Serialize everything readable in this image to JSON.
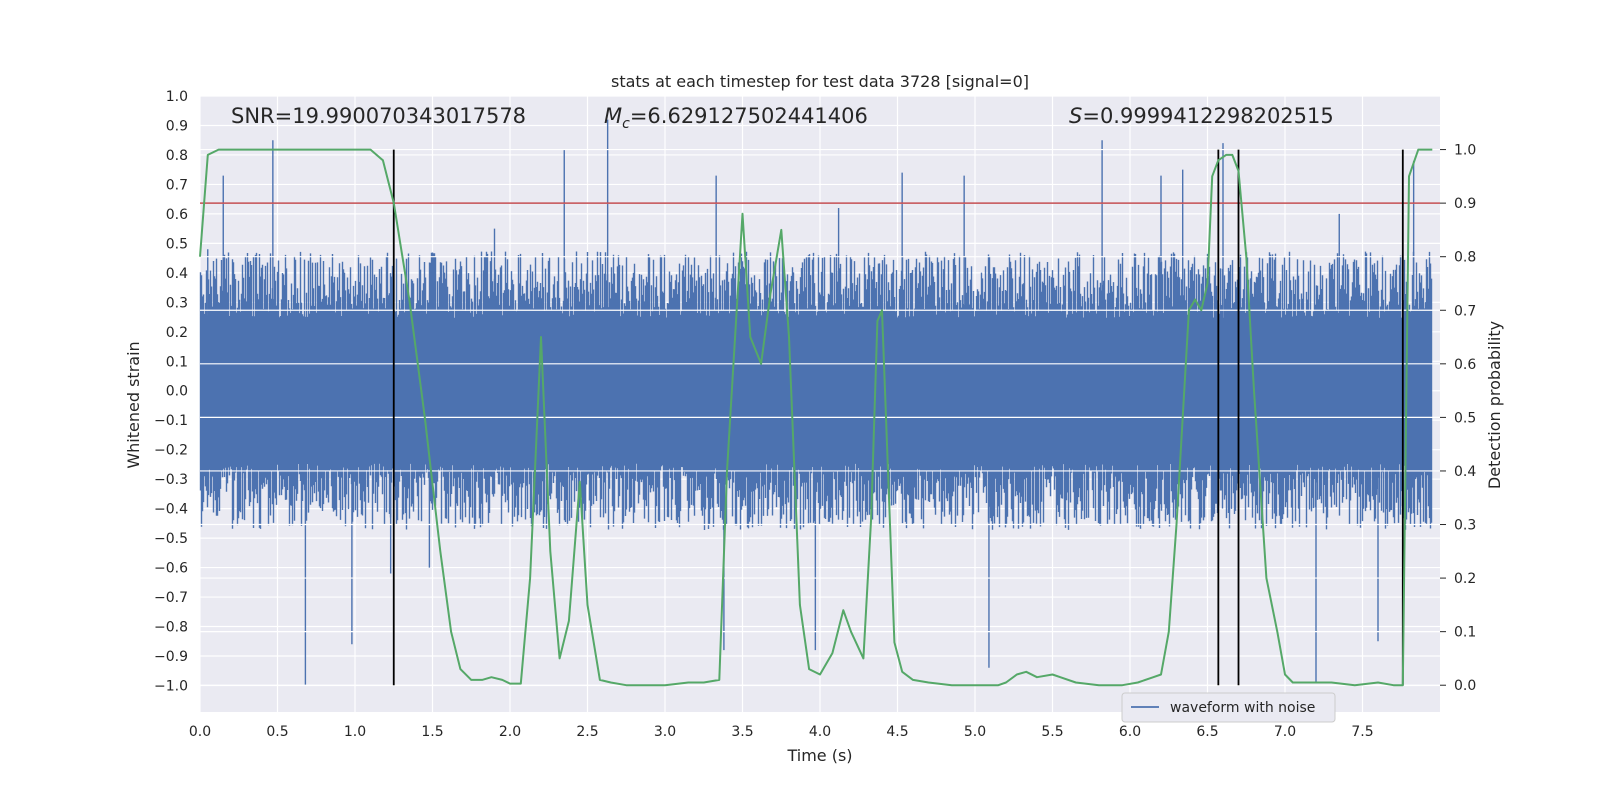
{
  "chart_data": {
    "type": "line",
    "title": "stats at each timestep for test data 3728 [signal=0]",
    "xlabel": "Time (s)",
    "ylabel": "Whitened strain",
    "y2label": "Detection probability",
    "xlim": [
      0.0,
      8.0
    ],
    "ylim": [
      -1.09,
      1.0
    ],
    "y2lim": [
      -0.05,
      1.1
    ],
    "xticks": [
      "0.0",
      "0.5",
      "1.0",
      "1.5",
      "2.0",
      "2.5",
      "3.0",
      "3.5",
      "4.0",
      "4.5",
      "5.0",
      "5.5",
      "6.0",
      "6.5",
      "7.0",
      "7.5"
    ],
    "yticks": [
      "1.0",
      "0.9",
      "0.8",
      "0.7",
      "0.6",
      "0.5",
      "0.4",
      "0.3",
      "0.2",
      "0.1",
      "0.0",
      "−0.1",
      "−0.2",
      "−0.3",
      "−0.4",
      "−0.5",
      "−0.6",
      "−0.7",
      "−0.8",
      "−0.9",
      "−1.0"
    ],
    "y2ticks": [
      "1.0",
      "0.9",
      "0.8",
      "0.7",
      "0.6",
      "0.5",
      "0.4",
      "0.3",
      "0.2",
      "0.1",
      "0.0"
    ],
    "grid": true,
    "legend": {
      "position": "lower-right",
      "entries": [
        "waveform with noise"
      ]
    },
    "annotations": {
      "snr": "SNR=19.990070343017578",
      "mc_symbol": "M",
      "mc_sub": "c",
      "mc_value": "=6.629127502441406",
      "s_symbol": "S",
      "s_value": "=0.9999412298202515"
    },
    "threshold_y2": 0.9,
    "event_lines_x": [
      1.25,
      6.57,
      6.7,
      7.76
    ],
    "strain_envelope": {
      "upper_typical": 0.45,
      "lower_typical": -0.45,
      "spikes": [
        [
          0.05,
          0.48
        ],
        [
          0.15,
          0.73
        ],
        [
          0.47,
          0.85
        ],
        [
          0.68,
          -1.0
        ],
        [
          0.98,
          -0.86
        ],
        [
          1.23,
          -0.62
        ],
        [
          1.48,
          -0.6
        ],
        [
          2.35,
          0.82
        ],
        [
          2.63,
          0.92
        ],
        [
          3.33,
          0.73
        ],
        [
          3.38,
          -0.88
        ],
        [
          3.97,
          -0.88
        ],
        [
          4.12,
          0.62
        ],
        [
          4.53,
          0.74
        ],
        [
          5.09,
          -0.94
        ],
        [
          5.82,
          0.85
        ],
        [
          6.2,
          0.73
        ],
        [
          6.34,
          0.75
        ],
        [
          7.2,
          -0.99
        ],
        [
          7.6,
          -0.85
        ],
        [
          7.83,
          0.78
        ],
        [
          7.35,
          0.6
        ],
        [
          1.9,
          0.55
        ],
        [
          4.93,
          0.73
        ],
        [
          6.6,
          0.84
        ]
      ]
    },
    "detection_probability": {
      "x": [
        0.0,
        0.05,
        0.12,
        0.2,
        0.4,
        0.6,
        0.8,
        1.0,
        1.1,
        1.18,
        1.25,
        1.35,
        1.45,
        1.55,
        1.62,
        1.68,
        1.75,
        1.82,
        1.88,
        1.95,
        2.0,
        2.07,
        2.13,
        2.2,
        2.26,
        2.32,
        2.38,
        2.45,
        2.5,
        2.58,
        2.65,
        2.75,
        2.85,
        3.0,
        3.15,
        3.25,
        3.35,
        3.4,
        3.5,
        3.55,
        3.62,
        3.68,
        3.75,
        3.8,
        3.87,
        3.93,
        4.0,
        4.08,
        4.15,
        4.2,
        4.28,
        4.33,
        4.37,
        4.4,
        4.48,
        4.53,
        4.6,
        4.7,
        4.85,
        5.0,
        5.15,
        5.2,
        5.27,
        5.33,
        5.4,
        5.5,
        5.55,
        5.65,
        5.8,
        5.95,
        6.05,
        6.15,
        6.2,
        6.25,
        6.3,
        6.38,
        6.42,
        6.46,
        6.5,
        6.53,
        6.57,
        6.62,
        6.66,
        6.7,
        6.75,
        6.8,
        6.88,
        6.95,
        7.0,
        7.05,
        7.15,
        7.3,
        7.45,
        7.6,
        7.7,
        7.76,
        7.8,
        7.86,
        7.9,
        7.95
      ],
      "y": [
        0.8,
        0.99,
        1.0,
        1.0,
        1.0,
        1.0,
        1.0,
        1.0,
        1.0,
        0.98,
        0.9,
        0.72,
        0.5,
        0.25,
        0.1,
        0.03,
        0.01,
        0.01,
        0.015,
        0.01,
        0.003,
        0.003,
        0.2,
        0.65,
        0.25,
        0.05,
        0.12,
        0.38,
        0.15,
        0.01,
        0.005,
        0.0,
        0.0,
        0.0,
        0.005,
        0.005,
        0.01,
        0.4,
        0.88,
        0.65,
        0.6,
        0.73,
        0.85,
        0.65,
        0.15,
        0.03,
        0.02,
        0.06,
        0.14,
        0.1,
        0.05,
        0.31,
        0.68,
        0.7,
        0.08,
        0.025,
        0.01,
        0.005,
        0.0,
        0.0,
        0.0,
        0.005,
        0.02,
        0.025,
        0.015,
        0.02,
        0.015,
        0.005,
        0.0,
        0.0,
        0.005,
        0.015,
        0.02,
        0.1,
        0.3,
        0.7,
        0.72,
        0.7,
        0.75,
        0.95,
        0.98,
        0.99,
        0.99,
        0.96,
        0.8,
        0.55,
        0.2,
        0.1,
        0.02,
        0.005,
        0.005,
        0.005,
        0.0,
        0.005,
        0.0,
        0.0,
        0.95,
        1.0,
        1.0,
        1.0
      ]
    },
    "colors": {
      "strain": "#4c72b0",
      "probability": "#55a868",
      "threshold": "#c44e52",
      "event_line": "#000000",
      "plot_bg": "#eaeaf2",
      "grid": "#ffffff"
    }
  }
}
